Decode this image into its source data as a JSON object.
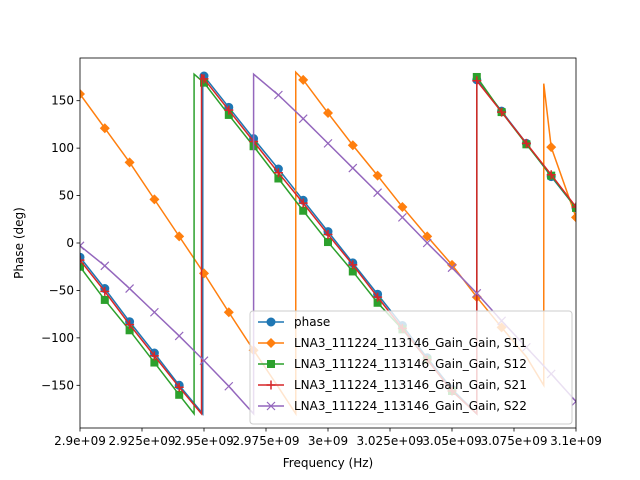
{
  "chart_data": {
    "type": "line",
    "title": "",
    "xlabel": "Frequency (Hz)",
    "ylabel": "Phase (deg)",
    "xlim": [
      2900000000,
      3100000000
    ],
    "ylim": [
      -195,
      195
    ],
    "xticks": [
      2900000000,
      2925000000,
      2950000000,
      2975000000,
      3000000000,
      3025000000,
      3050000000,
      3075000000,
      3100000000
    ],
    "xtick_labels": [
      "2.9e+09",
      "2.925e+09",
      "2.95e+09",
      "2.975e+09",
      "3e+09",
      "3.025e+09",
      "3.05e+09",
      "3.075e+09",
      "3.1e+09"
    ],
    "yticks": [
      -150,
      -100,
      -50,
      0,
      50,
      100,
      150
    ],
    "ytick_labels": [
      "−150",
      "−100",
      "−50",
      "0",
      "50",
      "100",
      "150"
    ],
    "grid": false,
    "legend_position": "lower-right",
    "series": [
      {
        "name": "phase",
        "color": "#1f77b4",
        "marker": "circle",
        "x": [
          2900000000,
          2910000000,
          2920000000,
          2930000000,
          2940000000,
          2949500000,
          2949501000,
          2950000000,
          2960000000,
          2970000000,
          2980000000,
          2990000000,
          3000000000,
          3010000000,
          3020000000,
          3030000000,
          3040000000,
          3050000000,
          3060000000,
          3060001000,
          3070000000,
          3080000000,
          3090000000,
          3100000000
        ],
        "y": [
          -15,
          -48,
          -83,
          -116,
          -150,
          -180,
          180,
          176,
          143,
          110,
          78,
          45,
          12,
          -21,
          -54,
          -87,
          -121,
          -154,
          -180,
          172,
          139,
          105,
          70,
          37
        ],
        "marker_x": [
          2900000000,
          2910000000,
          2920000000,
          2930000000,
          2940000000,
          2950000000,
          2960000000,
          2970000000,
          2980000000,
          2990000000,
          3000000000,
          3010000000,
          3020000000,
          3030000000,
          3040000000,
          3050000000,
          3060000000,
          3070000000,
          3080000000,
          3090000000,
          3100000000
        ],
        "marker_y": [
          -15,
          -48,
          -83,
          -116,
          -150,
          176,
          143,
          110,
          78,
          45,
          12,
          -21,
          -54,
          -87,
          -121,
          -154,
          172,
          139,
          105,
          70,
          37
        ]
      },
      {
        "name": "LNA3_111224_113146_Gain_Gain, S11",
        "color": "#ff7f0e",
        "marker": "diamond",
        "x": [
          2900000000,
          2910000000,
          2920000000,
          2930000000,
          2940000000,
          2950000000,
          2960000000,
          2970000000,
          2980000000,
          2987000000,
          2987001000,
          2990000000,
          3000000000,
          3010000000,
          3020000000,
          3030000000,
          3040000000,
          3050000000,
          3060000000,
          3070000000,
          3080000000,
          3087000000,
          3087001000,
          3090000000,
          3100000000
        ],
        "y": [
          157,
          121,
          85,
          46,
          7,
          -32,
          -73,
          -113,
          -152,
          -180,
          180,
          172,
          137,
          103,
          71,
          38,
          7,
          -23,
          -57,
          -89,
          -120,
          -150,
          168,
          101,
          27
        ],
        "marker_x": [
          2900000000,
          2910000000,
          2920000000,
          2930000000,
          2940000000,
          2950000000,
          2960000000,
          2970000000,
          2990000000,
          3000000000,
          3010000000,
          3020000000,
          3030000000,
          3040000000,
          3050000000,
          3060000000,
          3070000000,
          3090000000,
          3100000000
        ],
        "marker_y": [
          157,
          121,
          85,
          46,
          7,
          -32,
          -73,
          -113,
          172,
          137,
          103,
          71,
          38,
          7,
          -23,
          -57,
          -89,
          101,
          27
        ]
      },
      {
        "name": "LNA3_111224_113146_Gain_Gain, S12",
        "color": "#2ca02c",
        "marker": "square",
        "x": [
          2900000000,
          2910000000,
          2920000000,
          2930000000,
          2940000000,
          2946000000,
          2946001000,
          2950000000,
          2960000000,
          2970000000,
          2980000000,
          2990000000,
          3000000000,
          3010000000,
          3020000000,
          3030000000,
          3040000000,
          3050000000,
          3060000000,
          3060001000,
          3070000000,
          3080000000,
          3090000000,
          3100000000
        ],
        "y": [
          -25,
          -60,
          -92,
          -126,
          -160,
          -180,
          178,
          169,
          135,
          102,
          68,
          34,
          1,
          -30,
          -63,
          -91,
          -123,
          -156,
          -180,
          175,
          138,
          104,
          71,
          37
        ],
        "marker_x": [
          2900000000,
          2910000000,
          2920000000,
          2930000000,
          2940000000,
          2950000000,
          2960000000,
          2970000000,
          2980000000,
          2990000000,
          3000000000,
          3010000000,
          3020000000,
          3030000000,
          3040000000,
          3050000000,
          3060000000,
          3070000000,
          3080000000,
          3090000000,
          3100000000
        ],
        "marker_y": [
          -25,
          -60,
          -92,
          -126,
          -160,
          169,
          135,
          102,
          68,
          34,
          1,
          -30,
          -63,
          -91,
          -123,
          -156,
          175,
          138,
          104,
          71,
          37
        ]
      },
      {
        "name": "LNA3_111224_113146_Gain_Gain, S21",
        "color": "#d62728",
        "marker": "plus",
        "x": [
          2900000000,
          2910000000,
          2920000000,
          2930000000,
          2940000000,
          2949000000,
          2949001000,
          2950000000,
          2960000000,
          2970000000,
          2980000000,
          2990000000,
          3000000000,
          3010000000,
          3020000000,
          3030000000,
          3040000000,
          3050000000,
          3060000000,
          3060001000,
          3070000000,
          3080000000,
          3090000000,
          3100000000
        ],
        "y": [
          -18,
          -51,
          -86,
          -119,
          -152,
          -180,
          178,
          173,
          140,
          107,
          74,
          42,
          9,
          -23,
          -57,
          -90,
          -123,
          -156,
          -180,
          171,
          138,
          105,
          72,
          38
        ],
        "marker_x": [
          2900000000,
          2910000000,
          2920000000,
          2930000000,
          2940000000,
          2950000000,
          2960000000,
          2970000000,
          2980000000,
          2990000000,
          3000000000,
          3010000000,
          3020000000,
          3030000000,
          3040000000,
          3050000000,
          3060000000,
          3070000000,
          3080000000,
          3090000000,
          3100000000
        ],
        "marker_y": [
          -18,
          -51,
          -86,
          -119,
          -152,
          173,
          140,
          107,
          74,
          42,
          9,
          -23,
          -57,
          -90,
          -123,
          -156,
          171,
          138,
          105,
          72,
          38
        ]
      },
      {
        "name": "LNA3_111224_113146_Gain_Gain, S22",
        "color": "#9467bd",
        "marker": "x",
        "x": [
          2900000000,
          2910000000,
          2920000000,
          2930000000,
          2940000000,
          2950000000,
          2960000000,
          2970000000,
          2970001000,
          2980000000,
          2990000000,
          3000000000,
          3010000000,
          3020000000,
          3030000000,
          3040000000,
          3050000000,
          3060000000,
          3070000000,
          3080000000,
          3090000000,
          3100000000
        ],
        "y": [
          -3,
          -24,
          -48,
          -73,
          -98,
          -124,
          -151,
          -180,
          178,
          156,
          131,
          105,
          79,
          53,
          27,
          0,
          -26,
          -53,
          -82,
          -110,
          -138,
          -167
        ],
        "marker_x": [
          2900000000,
          2910000000,
          2920000000,
          2930000000,
          2940000000,
          2950000000,
          2960000000,
          2980000000,
          2990000000,
          3000000000,
          3010000000,
          3020000000,
          3030000000,
          3040000000,
          3050000000,
          3060000000,
          3070000000,
          3080000000,
          3090000000,
          3100000000
        ],
        "marker_y": [
          -3,
          -24,
          -48,
          -73,
          -98,
          -124,
          -151,
          156,
          131,
          105,
          79,
          53,
          27,
          0,
          -26,
          -53,
          -82,
          -110,
          -138,
          -167
        ]
      }
    ]
  }
}
